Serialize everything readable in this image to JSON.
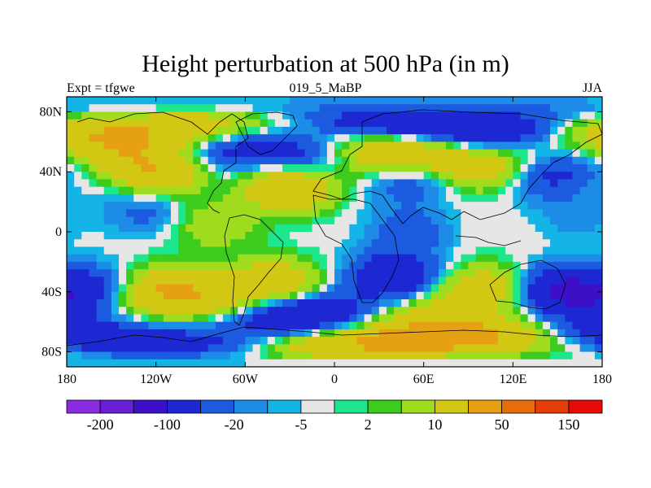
{
  "chart_data": {
    "type": "heatmap",
    "title": "Height perturbation at 500 hPa (in m)",
    "left_label": "Expt = tfgwe",
    "center_label": "019_5_MaBP",
    "right_label": "JJA",
    "x_ticks": [
      {
        "value": -180,
        "label": "180"
      },
      {
        "value": -120,
        "label": "120W"
      },
      {
        "value": -60,
        "label": "60W"
      },
      {
        "value": 0,
        "label": "0"
      },
      {
        "value": 60,
        "label": "60E"
      },
      {
        "value": 120,
        "label": "120E"
      },
      {
        "value": 180,
        "label": "180"
      }
    ],
    "y_ticks": [
      {
        "value": 80,
        "label": "80N"
      },
      {
        "value": 40,
        "label": "40N"
      },
      {
        "value": 0,
        "label": "0"
      },
      {
        "value": -40,
        "label": "40S"
      },
      {
        "value": -80,
        "label": "80S"
      }
    ],
    "xlim": [
      -180,
      180
    ],
    "ylim": [
      -90,
      90
    ],
    "colorbar": {
      "colors": [
        "#8a2be2",
        "#6a1ed8",
        "#3d10c8",
        "#1e28d2",
        "#1c5ae0",
        "#1c8ce6",
        "#14b4e6",
        "#e6e6e6",
        "#1ee68c",
        "#3ccc1e",
        "#a0dc1e",
        "#d2c814",
        "#e6a014",
        "#e66e0a",
        "#e63c0a",
        "#e60a0a"
      ],
      "labels": [
        "-200",
        "-100",
        "-20",
        "-5",
        "2",
        "10",
        "50",
        "150"
      ],
      "label_boundaries": [
        1,
        3,
        5,
        7,
        9,
        11,
        13,
        15
      ]
    },
    "anomaly_centers": [
      {
        "lon": -140,
        "lat": 65,
        "value": 60
      },
      {
        "lon": -125,
        "lat": 15,
        "value": -15
      },
      {
        "lon": -115,
        "lat": 42,
        "value": 60
      },
      {
        "lon": -85,
        "lat": 50,
        "value": -40
      },
      {
        "lon": -80,
        "lat": 5,
        "value": 20
      },
      {
        "lon": -40,
        "lat": 75,
        "value": 10
      },
      {
        "lon": -20,
        "lat": 50,
        "value": -30
      },
      {
        "lon": -30,
        "lat": 30,
        "value": 50
      },
      {
        "lon": 5,
        "lat": 70,
        "value": -20
      },
      {
        "lon": 35,
        "lat": 55,
        "value": 55
      },
      {
        "lon": 50,
        "lat": 35,
        "value": -20
      },
      {
        "lon": 90,
        "lat": 68,
        "value": -60
      },
      {
        "lon": 100,
        "lat": 45,
        "value": 50
      },
      {
        "lon": 140,
        "lat": 40,
        "value": -30
      },
      {
        "lon": 50,
        "lat": 0,
        "value": -15
      },
      {
        "lon": 120,
        "lat": 0,
        "value": 2
      },
      {
        "lon": 160,
        "lat": 10,
        "value": -8
      },
      {
        "lon": -160,
        "lat": -38,
        "value": -25
      },
      {
        "lon": -110,
        "lat": -40,
        "value": 60
      },
      {
        "lon": -40,
        "lat": -35,
        "value": 45
      },
      {
        "lon": -20,
        "lat": -55,
        "value": -50
      },
      {
        "lon": 40,
        "lat": -30,
        "value": -40
      },
      {
        "lon": 100,
        "lat": -40,
        "value": 45
      },
      {
        "lon": 155,
        "lat": -40,
        "value": -60
      },
      {
        "lon": 60,
        "lat": -70,
        "value": 70
      },
      {
        "lon": 170,
        "lat": -75,
        "value": -50
      },
      {
        "lon": -150,
        "lat": -80,
        "value": -20
      },
      {
        "lon": 120,
        "lat": -75,
        "value": 40
      }
    ]
  }
}
